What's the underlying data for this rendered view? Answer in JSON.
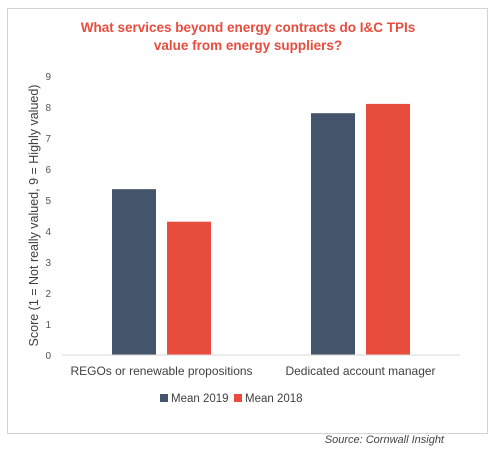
{
  "chart_data": {
    "type": "bar",
    "title_lines": [
      "What services beyond energy contracts do I&C TPIs",
      "value from energy suppliers?"
    ],
    "categories": [
      "REGOs or renewable propositions",
      "Dedicated account manager"
    ],
    "series": [
      {
        "name": "Mean 2019",
        "values": [
          5.35,
          7.8
        ],
        "color": "#44546a"
      },
      {
        "name": "Mean 2018",
        "values": [
          4.3,
          8.1
        ],
        "color": "#e84c3d"
      }
    ],
    "xlabel": "",
    "ylabel": "Score (1 = Not really valued, 9 = Highly valued)",
    "ylim": [
      0,
      9
    ],
    "yticks": [
      0,
      1,
      2,
      3,
      4,
      5,
      6,
      7,
      8,
      9
    ],
    "grid": false,
    "legend_position": "bottom",
    "title_color": "#e84c3d"
  },
  "source": "Source: Cornwall Insight"
}
